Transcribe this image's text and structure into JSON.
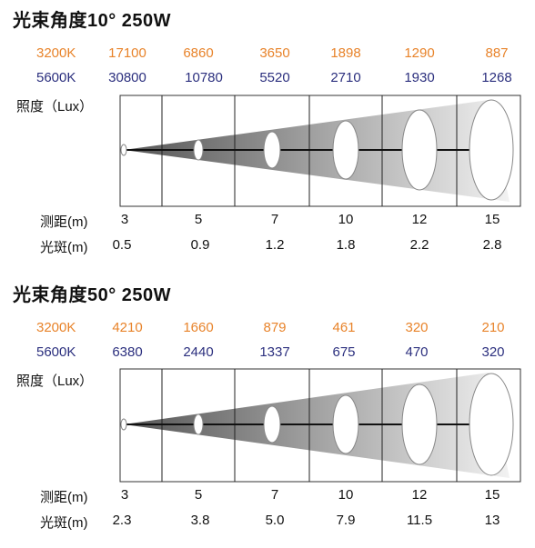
{
  "panels": [
    {
      "title": "光束角度10°  250W",
      "warm_label": "3200K",
      "cool_label": "5600K",
      "lux_label": "照度（Lux）",
      "distance_label": "测距(m)",
      "spot_label": "光斑(m)",
      "warm_values": [
        "17100",
        "6860",
        "3650",
        "1898",
        "1290",
        "887"
      ],
      "cool_values": [
        "30800",
        "10780",
        "5520",
        "2710",
        "1930",
        "1268"
      ],
      "distances": [
        "3",
        "5",
        "7",
        "10",
        "12",
        "15"
      ],
      "spots": [
        "0.5",
        "0.9",
        "1.2",
        "1.8",
        "2.2",
        "2.8"
      ]
    },
    {
      "title": "光束角度50°  250W",
      "warm_label": "3200K",
      "cool_label": "5600K",
      "lux_label": "照度（Lux）",
      "distance_label": "测距(m)",
      "spot_label": "光斑(m)",
      "warm_values": [
        "4210",
        "1660",
        "879",
        "461",
        "320",
        "210"
      ],
      "cool_values": [
        "6380",
        "2440",
        "1337",
        "675",
        "470",
        "320"
      ],
      "distances": [
        "3",
        "5",
        "7",
        "10",
        "12",
        "15"
      ],
      "spots": [
        "2.3",
        "3.8",
        "5.0",
        "7.9",
        "11.5",
        "13"
      ]
    }
  ],
  "colors": {
    "warm": "#e8832a",
    "cool": "#2b2f7e"
  }
}
